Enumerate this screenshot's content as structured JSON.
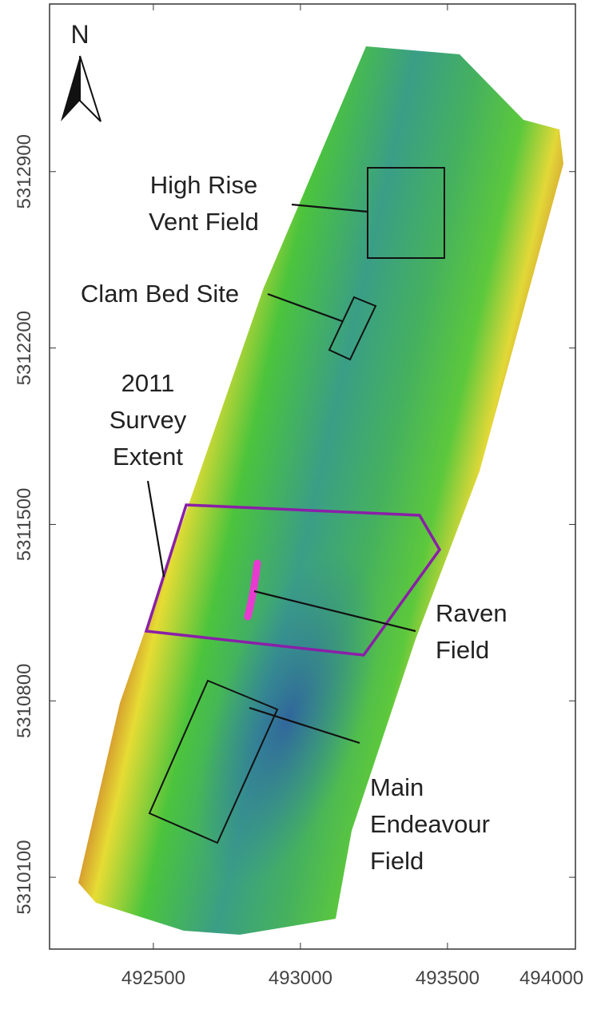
{
  "map": {
    "north": "N",
    "xlim": [
      492147,
      493935
    ],
    "ylim": [
      5309815,
      5313565
    ],
    "xticks": [
      492500,
      493000,
      493500,
      494000
    ],
    "yticks": [
      5312900,
      5312200,
      5311500,
      5310800,
      5310100
    ],
    "features": [
      {
        "lines": [
          "High Rise",
          "Vent Field"
        ]
      },
      {
        "lines": [
          "Clam Bed Site"
        ]
      },
      {
        "lines": [
          "2011",
          "Survey",
          "Extent"
        ]
      },
      {
        "lines": [
          "Raven",
          "Field"
        ]
      },
      {
        "lines": [
          "Main",
          "Endeavour",
          "Field"
        ]
      }
    ]
  }
}
